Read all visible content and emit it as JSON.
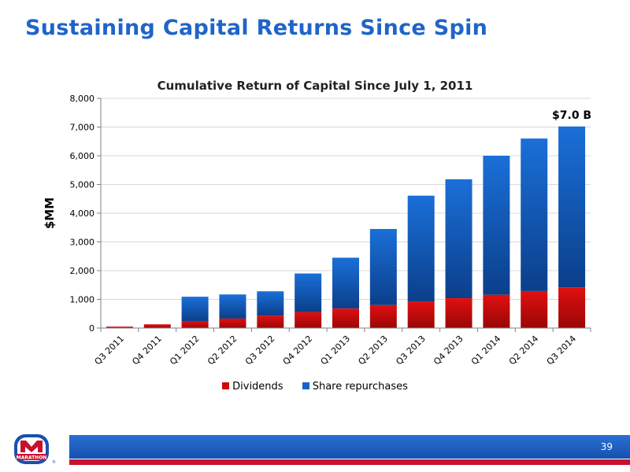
{
  "slide": {
    "title": "Sustaining Capital Returns Since Spin",
    "page_number": "39",
    "logo_text": "MARATHON"
  },
  "colors": {
    "title": "#1f64c8",
    "dividends": "#cc0a0a",
    "share_repurchases": "#1763cc",
    "footer_bar": "#1a5ec0",
    "footer_stripe": "#c8102e"
  },
  "chart_data": {
    "type": "bar",
    "stacked": true,
    "title": "Cumulative Return of Capital Since July 1, 2011",
    "ylabel": "$MM",
    "xlabel": "",
    "ylim": [
      0,
      8000
    ],
    "yticks": [
      0,
      1000,
      2000,
      3000,
      4000,
      5000,
      6000,
      7000,
      8000
    ],
    "ytick_labels": [
      "0",
      "1,000",
      "2,000",
      "3,000",
      "4,000",
      "5,000",
      "6,000",
      "7,000",
      "8,000"
    ],
    "grid": true,
    "legend_position": "bottom",
    "categories": [
      "Q3 2011",
      "Q4 2011",
      "Q1 2012",
      "Q2 2012",
      "Q3 2012",
      "Q4 2012",
      "Q1 2013",
      "Q2 2013",
      "Q3 2013",
      "Q4 2013",
      "Q1 2014",
      "Q2 2014",
      "Q3 2014"
    ],
    "series": [
      {
        "name": "Dividends",
        "values": [
          50,
          130,
          230,
          330,
          430,
          560,
          680,
          800,
          920,
          1040,
          1160,
          1290,
          1420
        ]
      },
      {
        "name": "Share repurchases",
        "values": [
          0,
          0,
          860,
          840,
          850,
          1340,
          1770,
          2650,
          3690,
          4140,
          4840,
          5310,
          5600
        ]
      }
    ],
    "annotations": [
      {
        "category": "Q3 2014",
        "text": "$7.0 B"
      }
    ]
  }
}
